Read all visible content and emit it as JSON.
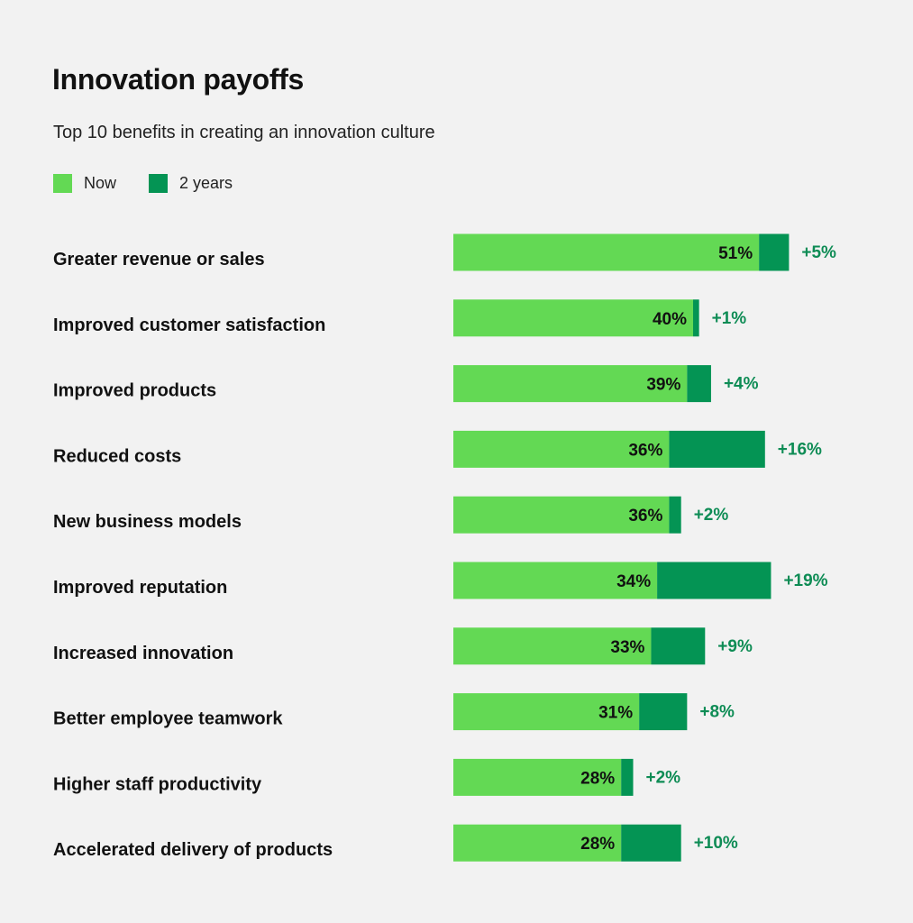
{
  "chart_data": {
    "type": "bar",
    "orientation": "horizontal",
    "stacked": true,
    "title": "Innovation payoffs",
    "subtitle": "Top 10 benefits in creating an innovation culture",
    "legend_position": "top-left",
    "grid": false,
    "xlim": [
      0,
      60
    ],
    "categories": [
      "Greater revenue or sales",
      "Improved customer satisfaction",
      "Improved products",
      "Reduced costs",
      "New business models",
      "Improved reputation",
      "Increased innovation",
      "Better employee teamwork",
      "Higher staff productivity",
      "Accelerated delivery of products"
    ],
    "series": [
      {
        "name": "Now",
        "color": "#63d954",
        "values": [
          51,
          40,
          39,
          36,
          36,
          34,
          33,
          31,
          28,
          28
        ],
        "labels": [
          "51%",
          "40%",
          "39%",
          "36%",
          "36%",
          "34%",
          "33%",
          "31%",
          "28%",
          "28%"
        ]
      },
      {
        "name": "2 years",
        "color": "#049454",
        "values": [
          5,
          1,
          4,
          16,
          2,
          19,
          9,
          8,
          2,
          10
        ],
        "labels": [
          "+5%",
          "+1%",
          "+4%",
          "+16%",
          "+2%",
          "+19%",
          "+9%",
          "+8%",
          "+2%",
          "+10%"
        ]
      }
    ],
    "delta_label_color": "#0e8c55"
  }
}
